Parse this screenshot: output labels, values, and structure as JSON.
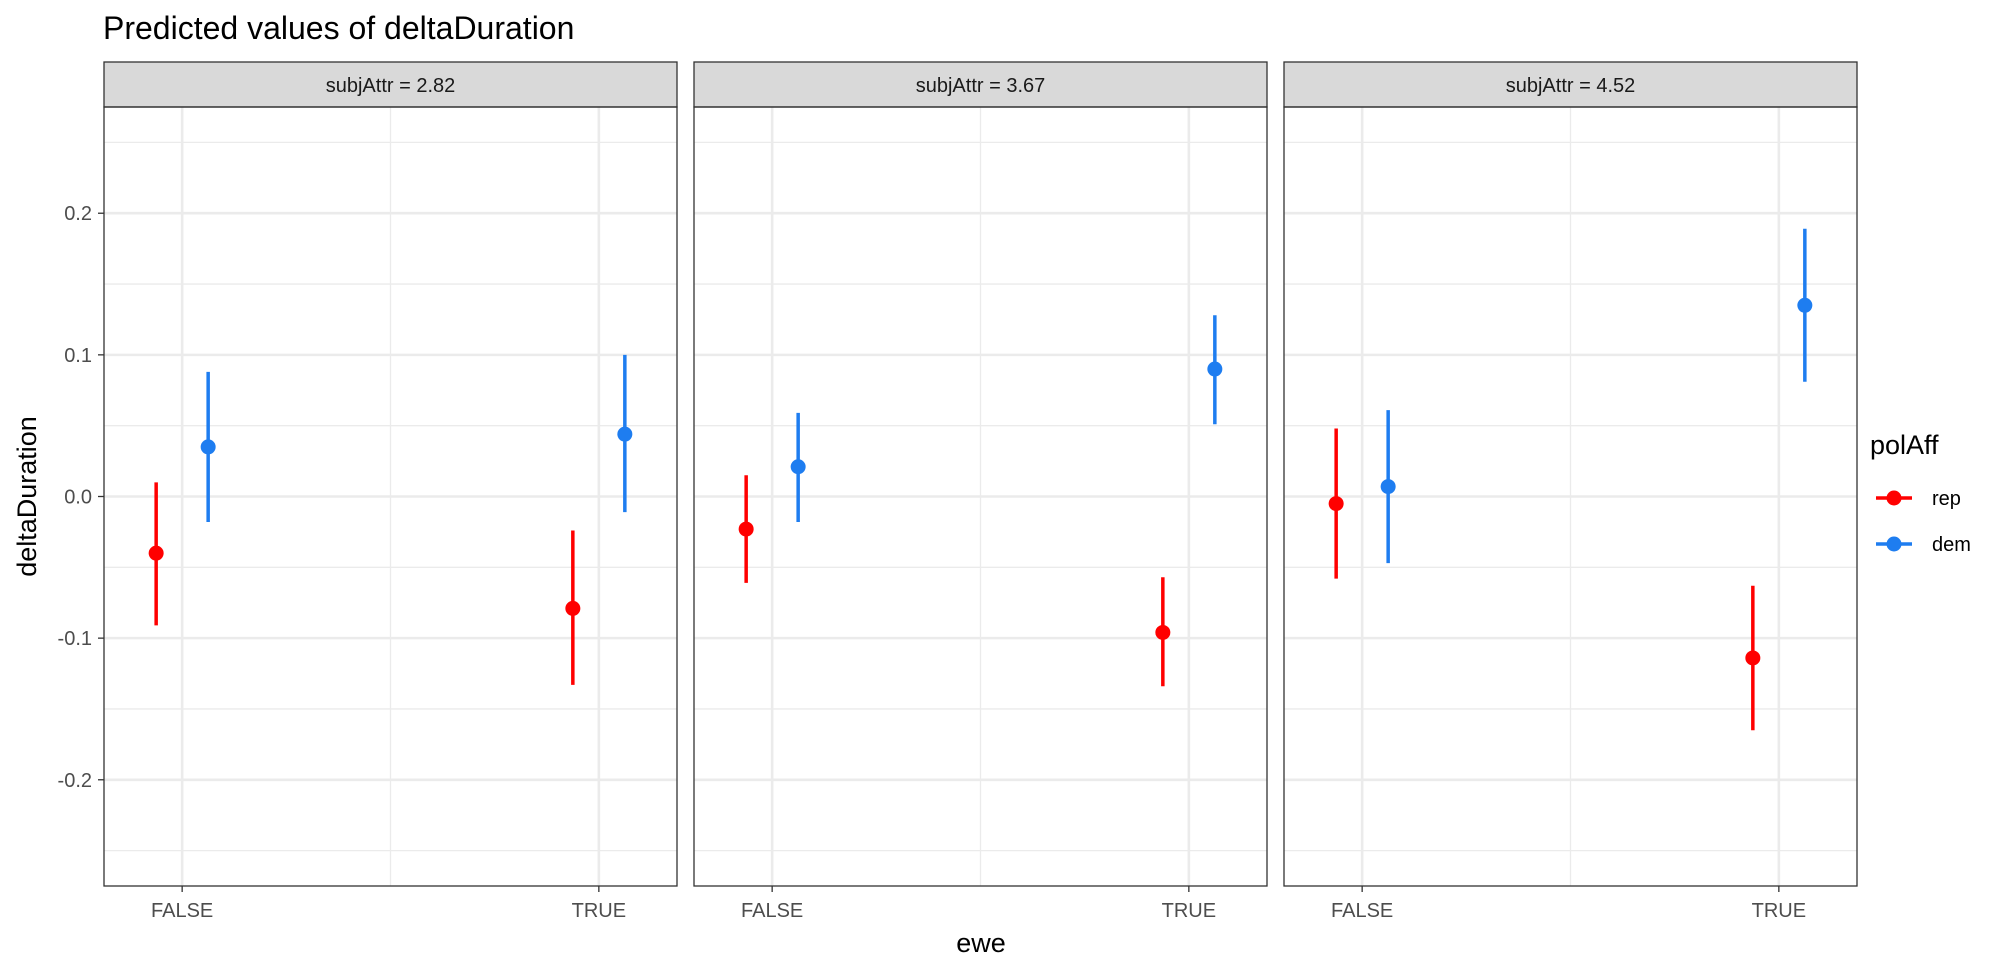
{
  "chart_data": {
    "type": "scatter",
    "geometry": "pointrange",
    "title": "Predicted values of deltaDuration",
    "xlabel": "ewe",
    "ylabel": "deltaDuration",
    "categories": [
      "FALSE",
      "TRUE"
    ],
    "ylim": [
      -0.275,
      0.275
    ],
    "y_ticks": [
      -0.2,
      -0.1,
      0.0,
      0.1,
      0.2
    ],
    "y_tick_labels": [
      "-0.2",
      "-0.1",
      "0.0",
      "0.1",
      "0.2"
    ],
    "grid": true,
    "legend": {
      "title": "polAff",
      "position": "right",
      "entries": [
        {
          "name": "rep",
          "color": "#ff0000"
        },
        {
          "name": "dem",
          "color": "#1e7df0"
        }
      ]
    },
    "panels": [
      {
        "label": "subjAttr = 2.82",
        "series": [
          {
            "name": "rep",
            "color": "#ff0000",
            "points": [
              {
                "x": "FALSE",
                "y": -0.04,
                "lo": -0.091,
                "hi": 0.01
              },
              {
                "x": "TRUE",
                "y": -0.079,
                "lo": -0.133,
                "hi": -0.024
              }
            ]
          },
          {
            "name": "dem",
            "color": "#1e7df0",
            "points": [
              {
                "x": "FALSE",
                "y": 0.035,
                "lo": -0.018,
                "hi": 0.088
              },
              {
                "x": "TRUE",
                "y": 0.044,
                "lo": -0.011,
                "hi": 0.1
              }
            ]
          }
        ]
      },
      {
        "label": "subjAttr = 3.67",
        "series": [
          {
            "name": "rep",
            "color": "#ff0000",
            "points": [
              {
                "x": "FALSE",
                "y": -0.023,
                "lo": -0.061,
                "hi": 0.015
              },
              {
                "x": "TRUE",
                "y": -0.096,
                "lo": -0.134,
                "hi": -0.057
              }
            ]
          },
          {
            "name": "dem",
            "color": "#1e7df0",
            "points": [
              {
                "x": "FALSE",
                "y": 0.021,
                "lo": -0.018,
                "hi": 0.059
              },
              {
                "x": "TRUE",
                "y": 0.09,
                "lo": 0.051,
                "hi": 0.128
              }
            ]
          }
        ]
      },
      {
        "label": "subjAttr = 4.52",
        "series": [
          {
            "name": "rep",
            "color": "#ff0000",
            "points": [
              {
                "x": "FALSE",
                "y": -0.005,
                "lo": -0.058,
                "hi": 0.048
              },
              {
                "x": "TRUE",
                "y": -0.114,
                "lo": -0.165,
                "hi": -0.063
              }
            ]
          },
          {
            "name": "dem",
            "color": "#1e7df0",
            "points": [
              {
                "x": "FALSE",
                "y": 0.007,
                "lo": -0.047,
                "hi": 0.061
              },
              {
                "x": "TRUE",
                "y": 0.135,
                "lo": 0.081,
                "hi": 0.189
              }
            ]
          }
        ]
      }
    ]
  }
}
